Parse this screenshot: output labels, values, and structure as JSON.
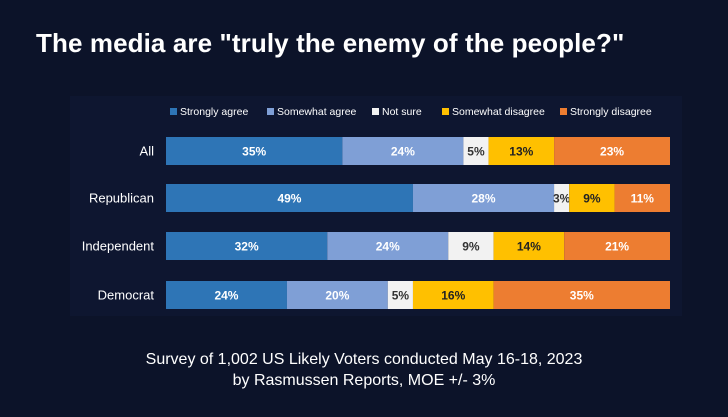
{
  "title": "The media are \"truly the enemy of the people?\"",
  "footer": {
    "line1": "Survey of 1,002 US Likely Voters conducted May 16-18, 2023",
    "line2": "by Rasmussen Reports, MOE +/- 3%"
  },
  "chart_data": {
    "type": "bar",
    "orientation": "horizontal",
    "stacked": true,
    "percent_stacked": true,
    "legend_position": "top",
    "grid": false,
    "categories": [
      "All",
      "Republican",
      "Independent",
      "Democrat"
    ],
    "series": [
      {
        "name": "Strongly agree",
        "color": "#2e75b6",
        "label_color": "#ffffff",
        "values": [
          35,
          49,
          32,
          24
        ]
      },
      {
        "name": "Somewhat agree",
        "color": "#7f9fd6",
        "label_color": "#ffffff",
        "values": [
          24,
          28,
          24,
          20
        ]
      },
      {
        "name": "Not sure",
        "color": "#f2f2f2",
        "label_color": "#333333",
        "values": [
          5,
          3,
          9,
          5
        ]
      },
      {
        "name": "Somewhat disagree",
        "color": "#ffc000",
        "label_color": "#222222",
        "values": [
          13,
          9,
          14,
          16
        ]
      },
      {
        "name": "Strongly disagree",
        "color": "#ed7d31",
        "label_color": "#ffffff",
        "values": [
          23,
          11,
          21,
          35
        ]
      }
    ],
    "value_suffix": "%"
  }
}
